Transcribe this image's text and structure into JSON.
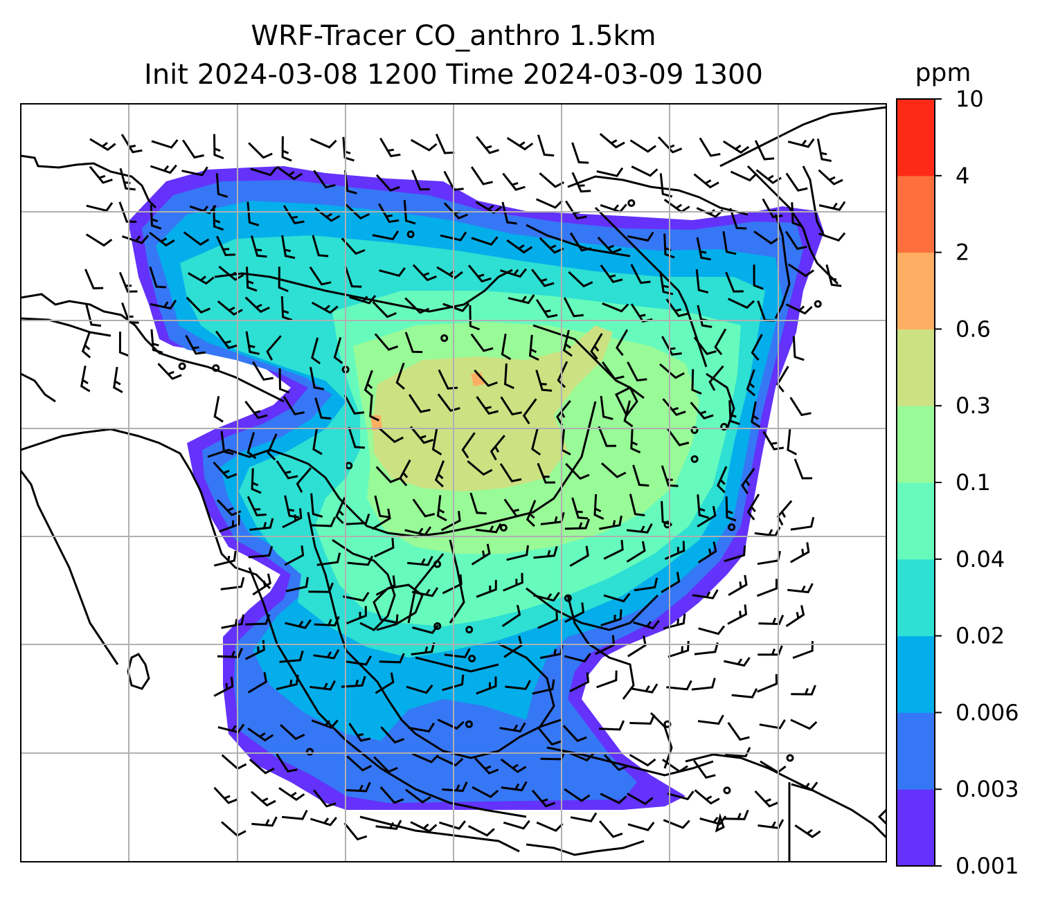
{
  "chart_data": {
    "type": "heatmap",
    "title": "WRF-Tracer CO_anthro 1.5km",
    "subtitle": "Init 2024-03-08 1200 Time 2024-03-09 1300",
    "variable": "CO_anthro",
    "resolution": "1.5km",
    "init_time": "2024-03-08 1200",
    "valid_time": "2024-03-09 1300",
    "colorbar": {
      "label": "ppm",
      "levels": [
        "0.001",
        "0.003",
        "0.006",
        "0.02",
        "0.04",
        "0.1",
        "0.3",
        "0.6",
        "2",
        "4",
        "10"
      ],
      "colors": [
        "#6432fa",
        "#3677f5",
        "#04aeea",
        "#2edfd3",
        "#66fbbd",
        "#99fa98",
        "#cce182",
        "#feae62",
        "#fe6f3d",
        "#fe2a15"
      ]
    },
    "grid": true,
    "overlays": [
      "coastlines",
      "wind barbs"
    ]
  }
}
